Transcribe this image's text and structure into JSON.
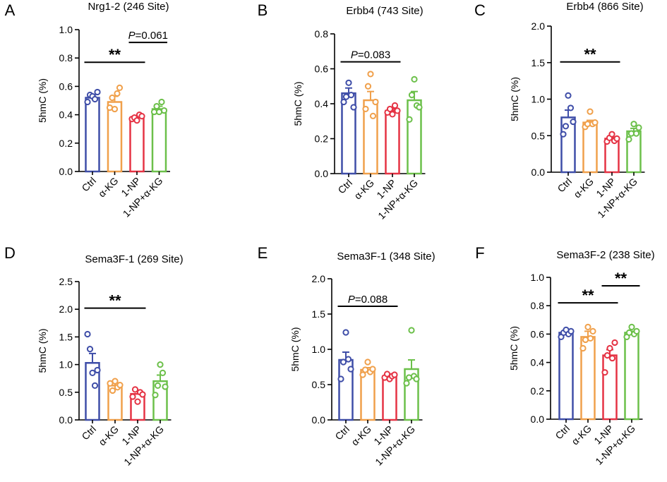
{
  "colors": {
    "Ctrl": "#3f4ea8",
    "α-KG": "#f0a04b",
    "1-NP": "#e53344",
    "1-NP+α-KG": "#6cc04a"
  },
  "ylabel": "5hmC (%)",
  "chart_data": [
    {
      "panel": "A",
      "type": "bar",
      "title": "Nrg1-2 (246 Site)",
      "ylabel": "5hmC (%)",
      "categories": [
        "Ctrl",
        "α-KG",
        "1-NP",
        "1-NP+α-KG"
      ],
      "means": [
        0.52,
        0.49,
        0.38,
        0.44
      ],
      "sem": [
        0.02,
        0.04,
        0.01,
        0.02
      ],
      "points": [
        [
          0.49,
          0.54,
          0.53,
          0.51,
          0.56
        ],
        [
          0.45,
          0.52,
          0.44,
          0.55,
          0.59
        ],
        [
          0.37,
          0.38,
          0.36,
          0.4,
          0.39
        ],
        [
          0.42,
          0.46,
          0.42,
          0.49,
          0.43
        ]
      ],
      "ylim": [
        0,
        1.0
      ],
      "yticks": [
        0.0,
        0.2,
        0.4,
        0.6,
        0.8,
        1.0
      ],
      "tick_labels": [
        "0.0",
        "0.2",
        "0.4",
        "0.6",
        "0.8",
        "1.0"
      ],
      "annotations": [
        {
          "from": 0,
          "to": 2,
          "y": 0.77,
          "italic": "",
          "label": "**"
        },
        {
          "from": 2,
          "to": 3,
          "y": 0.91,
          "italic": "P",
          "label": "=0.061"
        }
      ]
    },
    {
      "panel": "B",
      "type": "bar",
      "title": "Erbb4 (743 Site)",
      "ylabel": "5hmC (%)",
      "categories": [
        "Ctrl",
        "α-KG",
        "1-NP",
        "1-NP+α-KG"
      ],
      "means": [
        0.46,
        0.42,
        0.36,
        0.42
      ],
      "sem": [
        0.03,
        0.05,
        0.01,
        0.05
      ],
      "points": [
        [
          0.41,
          0.44,
          0.52,
          0.45,
          0.38
        ],
        [
          0.37,
          0.5,
          0.57,
          0.33,
          0.41
        ],
        [
          0.35,
          0.37,
          0.34,
          0.39,
          0.36
        ],
        [
          0.31,
          0.45,
          0.54,
          0.39,
          0.38
        ]
      ],
      "ylim": [
        0,
        0.8
      ],
      "yticks": [
        0.0,
        0.2,
        0.4,
        0.6,
        0.8
      ],
      "tick_labels": [
        "0.0",
        "0.2",
        "0.4",
        "0.6",
        "0.8"
      ],
      "annotations": [
        {
          "from": 0,
          "to": 2,
          "y": 0.64,
          "italic": "P",
          "label": "=0.083"
        }
      ]
    },
    {
      "panel": "C",
      "type": "bar",
      "title": "Erbb4 (866 Site)",
      "ylabel": "5hmC (%)",
      "categories": [
        "Ctrl",
        "α-KG",
        "1-NP",
        "1-NP+α-KG"
      ],
      "means": [
        0.75,
        0.68,
        0.46,
        0.56
      ],
      "sem": [
        0.1,
        0.03,
        0.02,
        0.04
      ],
      "points": [
        [
          0.52,
          0.63,
          1.05,
          0.88,
          0.69
        ],
        [
          0.62,
          0.66,
          0.83,
          0.66,
          0.68
        ],
        [
          0.42,
          0.47,
          0.52,
          0.43,
          0.46
        ],
        [
          0.45,
          0.53,
          0.66,
          0.53,
          0.61
        ]
      ],
      "ylim": [
        0,
        2.0
      ],
      "yticks": [
        0.0,
        0.5,
        1.0,
        1.5,
        2.0
      ],
      "tick_labels": [
        "0.0",
        "0.5",
        "1.0",
        "1.5",
        "2.0"
      ],
      "annotations": [
        {
          "from": 0,
          "to": 2,
          "y": 1.51,
          "italic": "",
          "label": "**"
        }
      ]
    },
    {
      "panel": "D",
      "type": "bar",
      "title": "Sema3F-1 (269 Site)",
      "ylabel": "5hmC (%)",
      "categories": [
        "Ctrl",
        "α-KG",
        "1-NP",
        "1-NP+α-KG"
      ],
      "means": [
        1.03,
        0.62,
        0.47,
        0.7
      ],
      "sem": [
        0.17,
        0.05,
        0.04,
        0.11
      ],
      "points": [
        [
          1.55,
          1.28,
          0.85,
          0.62,
          0.9
        ],
        [
          0.66,
          0.53,
          0.7,
          0.59,
          0.63
        ],
        [
          0.42,
          0.55,
          0.33,
          0.5,
          0.46
        ],
        [
          0.45,
          0.62,
          1.0,
          0.85,
          0.6
        ]
      ],
      "ylim": [
        0,
        2.5
      ],
      "yticks": [
        0.0,
        0.5,
        1.0,
        1.5,
        2.0,
        2.5
      ],
      "tick_labels": [
        "0.0",
        "0.5",
        "1.0",
        "1.5",
        "2.0",
        "2.5"
      ],
      "annotations": [
        {
          "from": 0,
          "to": 2,
          "y": 2.02,
          "italic": "",
          "label": "**"
        }
      ]
    },
    {
      "panel": "E",
      "type": "bar",
      "title": "Sema3F-1 (348 Site)",
      "ylabel": "5hmC (%)",
      "categories": [
        "Ctrl",
        "α-KG",
        "1-NP",
        "1-NP+α-KG"
      ],
      "means": [
        0.85,
        0.71,
        0.62,
        0.72
      ],
      "sem": [
        0.11,
        0.03,
        0.02,
        0.13
      ],
      "points": [
        [
          0.58,
          0.82,
          1.24,
          0.86,
          0.72
        ],
        [
          0.64,
          0.71,
          0.82,
          0.68,
          0.72
        ],
        [
          0.6,
          0.65,
          0.58,
          0.62,
          0.64
        ],
        [
          0.52,
          0.6,
          1.27,
          0.62,
          0.58
        ]
      ],
      "ylim": [
        0,
        2.0
      ],
      "yticks": [
        0.0,
        0.5,
        1.0,
        1.5,
        2.0
      ],
      "tick_labels": [
        "0.0",
        "0.5",
        "1.0",
        "1.5",
        "2.0"
      ],
      "annotations": [
        {
          "from": 0,
          "to": 2,
          "y": 1.61,
          "italic": "P",
          "label": "=0.088"
        }
      ]
    },
    {
      "panel": "F",
      "type": "bar",
      "title": "Sema3F-2 (238 Site)",
      "ylabel": "5hmC (%)",
      "categories": [
        "Ctrl",
        "α-KG",
        "1-NP",
        "1-NP+α-KG"
      ],
      "means": [
        0.61,
        0.58,
        0.45,
        0.61
      ],
      "sem": [
        0.01,
        0.04,
        0.04,
        0.01
      ],
      "points": [
        [
          0.58,
          0.61,
          0.63,
          0.6,
          0.62
        ],
        [
          0.5,
          0.56,
          0.65,
          0.57,
          0.62
        ],
        [
          0.33,
          0.45,
          0.5,
          0.43,
          0.54
        ],
        [
          0.58,
          0.61,
          0.65,
          0.6,
          0.62
        ]
      ],
      "ylim": [
        0,
        1.0
      ],
      "yticks": [
        0.0,
        0.2,
        0.4,
        0.6,
        0.8,
        1.0
      ],
      "tick_labels": [
        "0.0",
        "0.2",
        "0.4",
        "0.6",
        "0.8",
        "1.0"
      ],
      "annotations": [
        {
          "from": 0,
          "to": 2,
          "y": 0.82,
          "italic": "",
          "label": "**"
        },
        {
          "from": 2,
          "to": 3,
          "y": 0.94,
          "italic": "",
          "label": "**"
        }
      ]
    }
  ]
}
